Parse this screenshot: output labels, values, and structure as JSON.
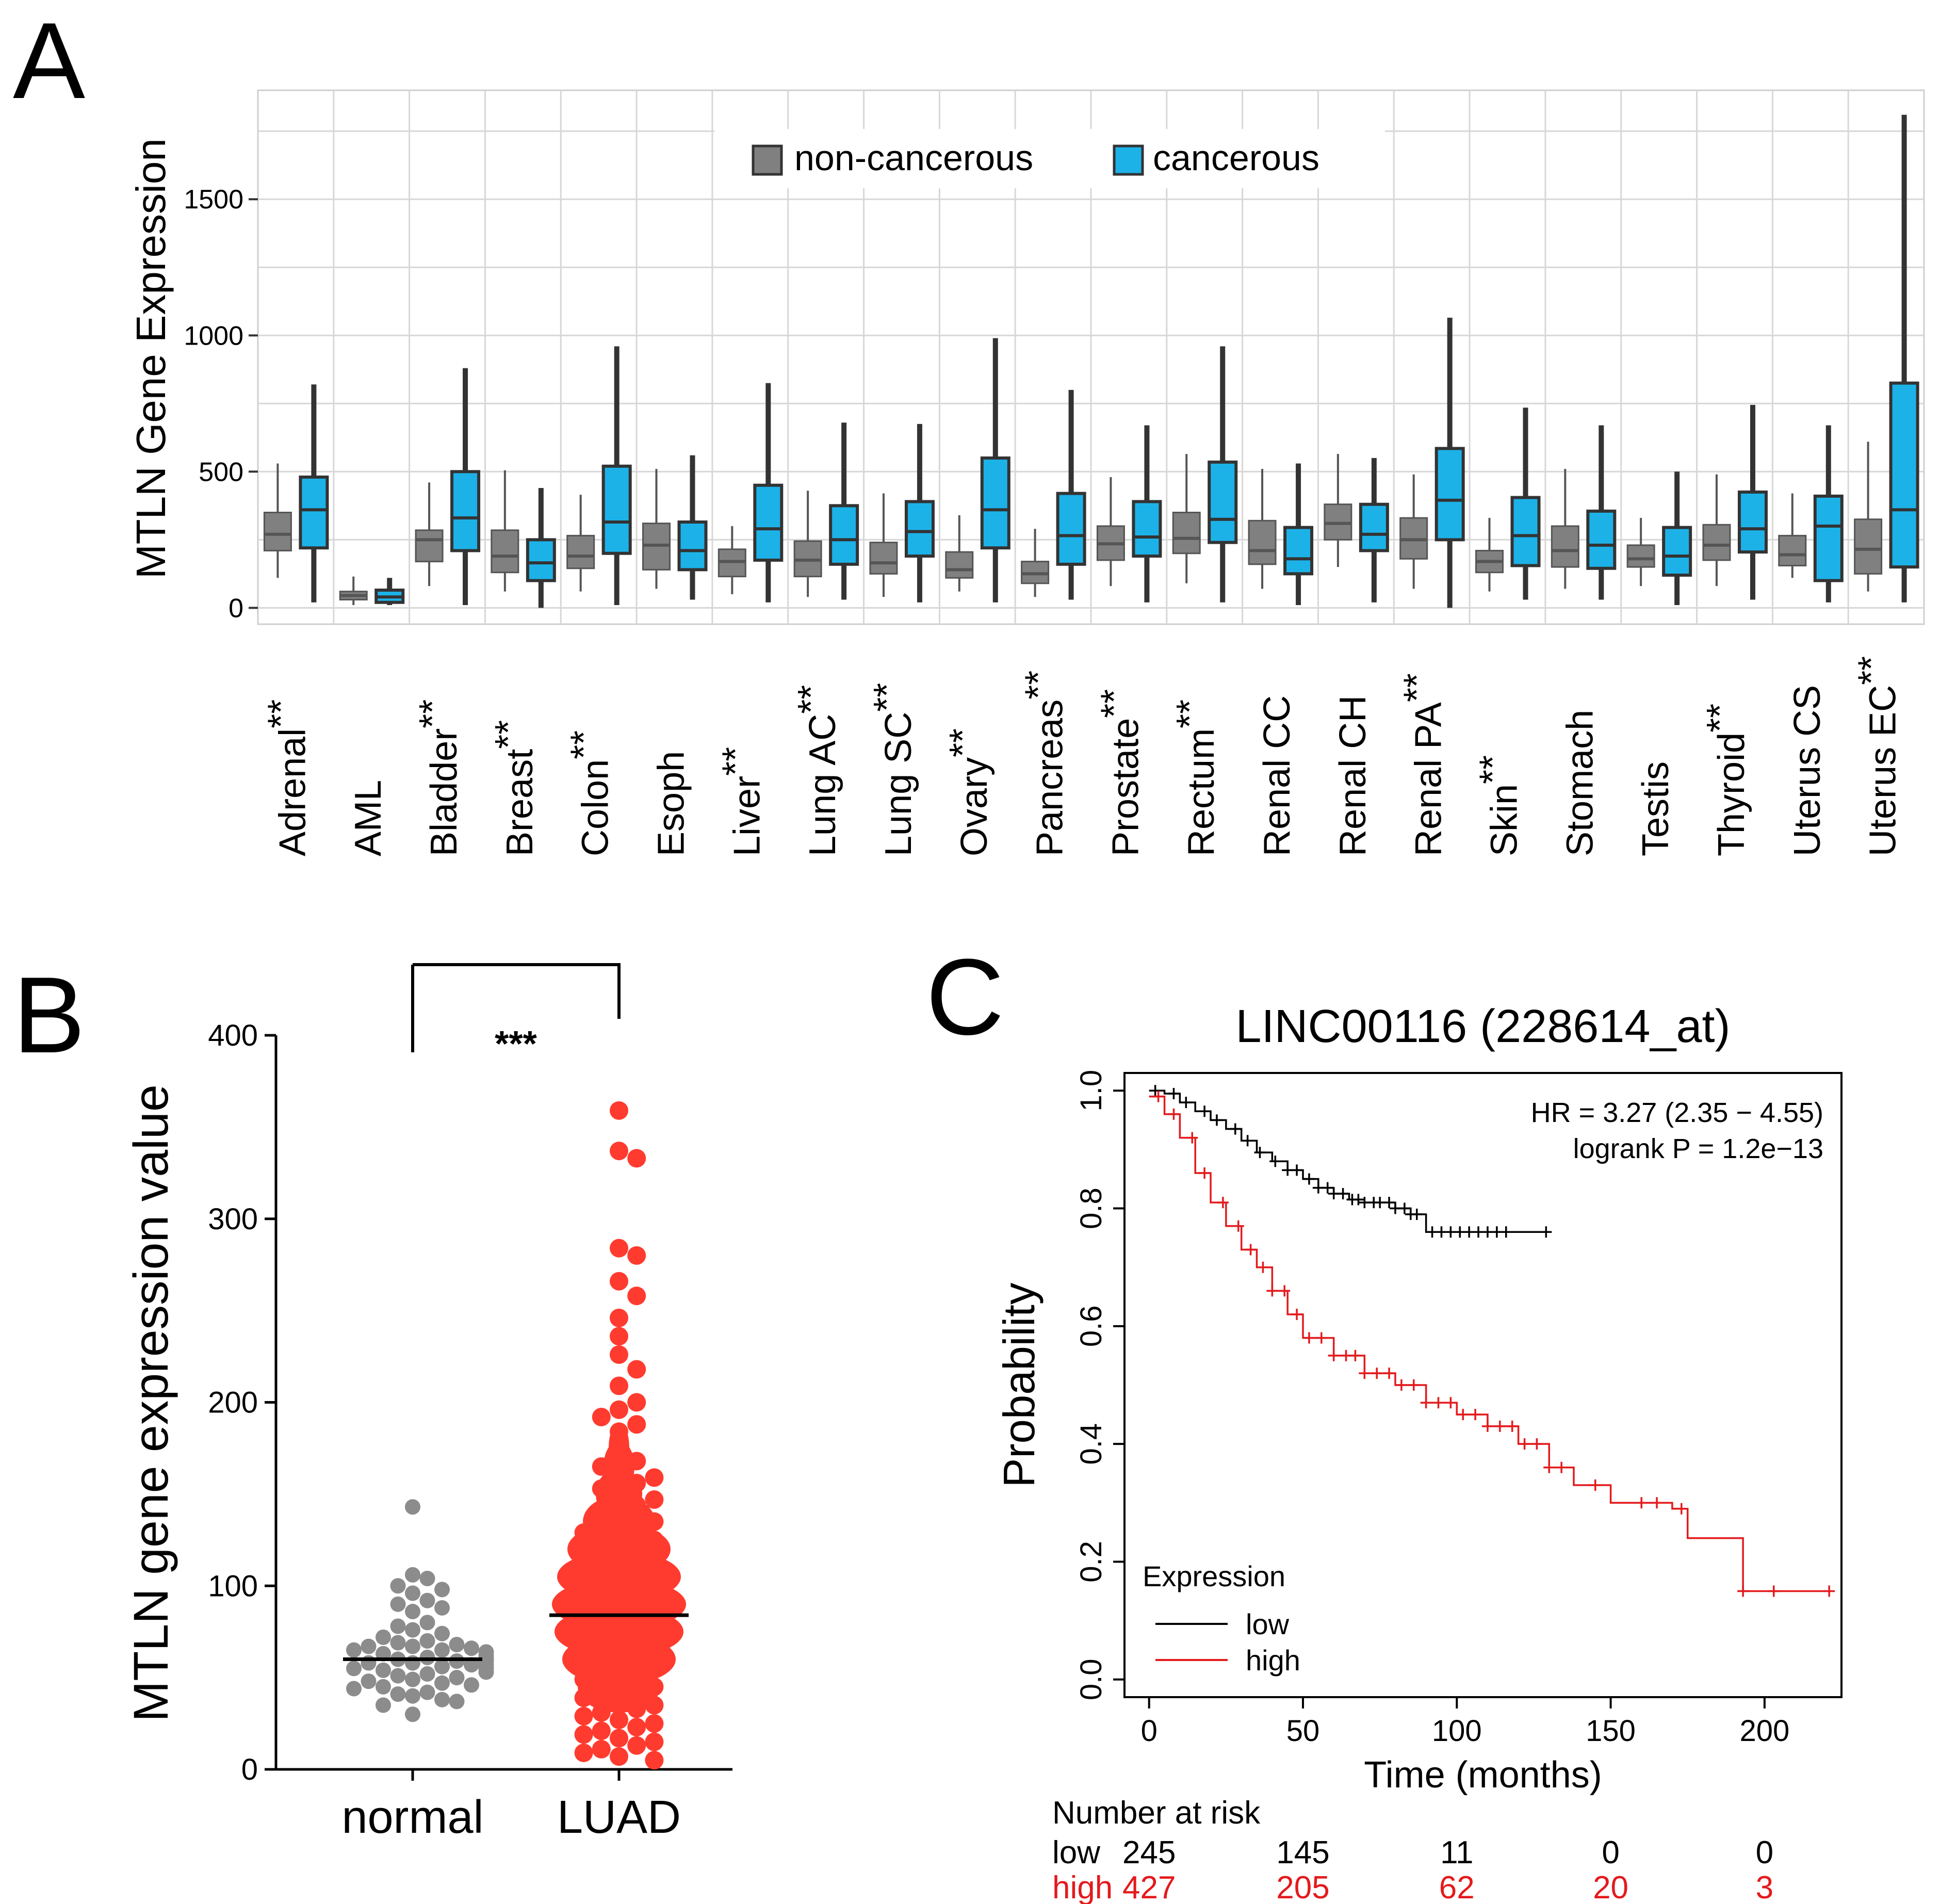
{
  "panel_labels": [
    "A",
    "B",
    "C"
  ],
  "chart_data": [
    {
      "id": "A",
      "type": "boxplot",
      "title": "",
      "xlabel": "",
      "ylabel": "MTLN Gene Expression",
      "ylim": [
        -60,
        1900
      ],
      "yticks": [
        0,
        500,
        1000,
        1500
      ],
      "ytick_labels": [
        "0",
        "500",
        "1000",
        "1500"
      ],
      "grid": true,
      "legend": [
        "non-cancerous",
        "cancerous"
      ],
      "legend_position": "top-center",
      "colors": {
        "non-cancerous": "#808080",
        "cancerous": "#1cb2e8"
      },
      "categories": [
        {
          "base": "Adrenal",
          "sig": "**"
        },
        {
          "base": "AML",
          "sig": ""
        },
        {
          "base": "Bladder",
          "sig": "**"
        },
        {
          "base": "Breast",
          "sig": "**"
        },
        {
          "base": "Colon",
          "sig": "**"
        },
        {
          "base": "Esoph",
          "sig": ""
        },
        {
          "base": "Liver",
          "sig": "**"
        },
        {
          "base": "Lung AC",
          "sig": "**"
        },
        {
          "base": "Lung SC",
          "sig": "**"
        },
        {
          "base": "Ovary",
          "sig": "**"
        },
        {
          "base": "Pancreas",
          "sig": "**"
        },
        {
          "base": "Prostate",
          "sig": "**"
        },
        {
          "base": "Rectum",
          "sig": "**"
        },
        {
          "base": "Renal CC",
          "sig": ""
        },
        {
          "base": "Renal CH",
          "sig": ""
        },
        {
          "base": "Renal PA",
          "sig": "**"
        },
        {
          "base": "Skin",
          "sig": "**"
        },
        {
          "base": "Stomach",
          "sig": ""
        },
        {
          "base": "Testis",
          "sig": ""
        },
        {
          "base": "Thyroid",
          "sig": "**"
        },
        {
          "base": "Uterus CS",
          "sig": ""
        },
        {
          "base": "Uterus EC",
          "sig": "**"
        }
      ],
      "series": [
        {
          "name": "non-cancerous",
          "boxes": [
            [
              110,
              210,
              270,
              350,
              530
            ],
            [
              10,
              30,
              45,
              60,
              115
            ],
            [
              80,
              170,
              250,
              285,
              460
            ],
            [
              60,
              130,
              190,
              285,
              505
            ],
            [
              60,
              145,
              190,
              265,
              415
            ],
            [
              70,
              140,
              230,
              310,
              510
            ],
            [
              50,
              115,
              170,
              215,
              300
            ],
            [
              40,
              115,
              175,
              245,
              430
            ],
            [
              40,
              125,
              165,
              240,
              420
            ],
            [
              60,
              110,
              140,
              205,
              340
            ],
            [
              40,
              90,
              125,
              170,
              290
            ],
            [
              80,
              175,
              235,
              300,
              480
            ],
            [
              90,
              200,
              255,
              350,
              565
            ],
            [
              70,
              160,
              210,
              320,
              510
            ],
            [
              150,
              250,
              310,
              380,
              565
            ],
            [
              70,
              180,
              250,
              330,
              490
            ],
            [
              60,
              130,
              170,
              210,
              330
            ],
            [
              70,
              150,
              210,
              300,
              510
            ],
            [
              80,
              150,
              180,
              230,
              330
            ],
            [
              80,
              175,
              230,
              305,
              490
            ],
            [
              110,
              155,
              195,
              265,
              420
            ],
            [
              60,
              125,
              215,
              325,
              610
            ]
          ]
        },
        {
          "name": "cancerous",
          "boxes": [
            [
              20,
              220,
              360,
              480,
              820
            ],
            [
              10,
              20,
              40,
              65,
              110
            ],
            [
              10,
              210,
              330,
              500,
              880
            ],
            [
              0,
              100,
              165,
              250,
              440
            ],
            [
              10,
              200,
              315,
              520,
              960
            ],
            [
              30,
              140,
              210,
              315,
              560
            ],
            [
              20,
              175,
              290,
              450,
              825
            ],
            [
              30,
              160,
              250,
              375,
              680
            ],
            [
              20,
              190,
              280,
              390,
              675
            ],
            [
              20,
              220,
              360,
              550,
              990
            ],
            [
              30,
              160,
              265,
              420,
              800
            ],
            [
              20,
              190,
              260,
              390,
              670
            ],
            [
              20,
              240,
              325,
              535,
              960
            ],
            [
              10,
              125,
              180,
              295,
              530
            ],
            [
              20,
              210,
              270,
              380,
              550
            ],
            [
              0,
              250,
              395,
              585,
              1065
            ],
            [
              30,
              155,
              265,
              405,
              735
            ],
            [
              30,
              145,
              230,
              355,
              670
            ],
            [
              10,
              120,
              190,
              295,
              500
            ],
            [
              30,
              205,
              290,
              425,
              745
            ],
            [
              20,
              100,
              300,
              410,
              670
            ],
            [
              20,
              150,
              360,
              825,
              1810
            ]
          ]
        }
      ]
    },
    {
      "id": "B",
      "type": "scatter",
      "title": "",
      "xlabel": "",
      "ylabel": "MTLN gene expression value",
      "ylim": [
        0,
        400
      ],
      "yticks": [
        0,
        100,
        200,
        300,
        400
      ],
      "ytick_labels": [
        "0",
        "100",
        "200",
        "300",
        "400"
      ],
      "categories": [
        "normal",
        "LUAD"
      ],
      "means": [
        60,
        84
      ],
      "significance": "***",
      "colors": {
        "normal": "#8c8c8c",
        "LUAD": "#ff3b2f"
      },
      "normal_points": [
        143,
        106,
        104,
        100,
        98,
        96,
        92,
        90,
        88,
        86,
        80,
        78,
        76,
        74,
        72,
        70,
        69,
        68,
        67,
        67,
        66,
        65,
        65,
        64,
        63,
        62,
        62,
        61,
        60,
        60,
        60,
        59,
        59,
        58,
        58,
        57,
        57,
        56,
        55,
        55,
        54,
        53,
        52,
        51,
        50,
        49,
        48,
        47,
        46,
        45,
        44,
        42,
        41,
        40,
        38,
        37,
        35,
        30
      ],
      "luad_points": [
        359,
        337,
        333,
        284,
        280,
        266,
        258,
        246,
        236,
        226,
        218,
        209,
        200,
        196,
        192,
        188,
        184,
        172,
        168,
        165,
        162,
        159,
        156,
        153,
        150,
        147,
        144,
        141,
        138,
        135,
        133,
        131,
        129,
        127,
        125,
        123,
        121,
        119,
        117,
        115,
        113,
        111,
        109,
        107,
        105,
        103,
        101,
        99,
        97,
        95,
        93,
        91,
        89,
        87,
        85,
        83,
        81,
        79,
        77,
        75,
        73,
        71,
        69,
        67,
        65,
        63,
        61,
        59,
        57,
        55,
        53,
        51,
        49,
        47,
        45,
        43,
        41,
        39,
        37,
        35,
        33,
        31,
        29,
        27,
        25,
        23,
        21,
        19,
        17,
        15,
        13,
        11,
        9,
        7,
        5
      ]
    },
    {
      "id": "C",
      "type": "line",
      "title": "LINC00116 (228614_at)",
      "xlabel": "Time (months)",
      "ylabel": "Probability",
      "xlim": [
        -8,
        225
      ],
      "ylim": [
        -0.03,
        1.03
      ],
      "xticks": [
        0,
        50,
        100,
        150,
        200
      ],
      "xtick_labels": [
        "0",
        "50",
        "100",
        "150",
        "200"
      ],
      "yticks": [
        0.0,
        0.2,
        0.4,
        0.6,
        0.8,
        1.0
      ],
      "ytick_labels": [
        "0.0",
        "0.2",
        "0.4",
        "0.6",
        "0.8",
        "1.0"
      ],
      "annotations": [
        "HR = 3.27 (2.35 − 4.55)",
        "logrank P = 1.2e−13"
      ],
      "legend_title": "Expression",
      "legend_position": "bottom-left",
      "series": [
        {
          "name": "low",
          "color": "#000000",
          "x": [
            0,
            5,
            10,
            15,
            20,
            25,
            30,
            35,
            40,
            45,
            50,
            55,
            60,
            65,
            70,
            75,
            80,
            85,
            88,
            90,
            100,
            110,
            120,
            129
          ],
          "y": [
            1.0,
            0.995,
            0.98,
            0.965,
            0.95,
            0.935,
            0.915,
            0.895,
            0.88,
            0.865,
            0.85,
            0.835,
            0.825,
            0.815,
            0.81,
            0.81,
            0.8,
            0.79,
            0.79,
            0.76,
            0.76,
            0.76,
            0.76,
            0.76
          ],
          "censor_x": [
            2,
            8,
            12,
            18,
            22,
            28,
            32,
            36,
            41,
            45,
            48,
            52,
            55,
            58,
            60,
            63,
            66,
            68,
            70,
            73,
            75,
            78,
            80,
            83,
            85,
            87,
            92,
            95,
            98,
            101,
            104,
            107,
            110,
            113,
            116,
            129
          ]
        },
        {
          "name": "high",
          "color": "#e41a1c",
          "x": [
            0,
            5,
            10,
            15,
            20,
            25,
            30,
            35,
            40,
            45,
            50,
            60,
            70,
            80,
            90,
            100,
            110,
            120,
            130,
            138,
            150,
            170,
            175,
            193,
            200,
            220
          ],
          "y": [
            0.99,
            0.96,
            0.92,
            0.86,
            0.81,
            0.77,
            0.73,
            0.7,
            0.66,
            0.62,
            0.58,
            0.55,
            0.52,
            0.5,
            0.47,
            0.45,
            0.43,
            0.4,
            0.36,
            0.33,
            0.3,
            0.29,
            0.24,
            0.15,
            0.15,
            0.15
          ],
          "censor_x": [
            3,
            8,
            14,
            18,
            24,
            29,
            33,
            37,
            40,
            44,
            48,
            52,
            56,
            60,
            64,
            67,
            70,
            74,
            78,
            82,
            86,
            90,
            94,
            98,
            102,
            106,
            110,
            114,
            118,
            122,
            126,
            130,
            134,
            145,
            160,
            165,
            173,
            193,
            203,
            221
          ]
        }
      ],
      "risk_table": {
        "title": "Number at risk",
        "rows": [
          {
            "label": "low",
            "color": "#000000",
            "values": [
              "245",
              "145",
              "11",
              "0",
              "0"
            ]
          },
          {
            "label": "high",
            "color": "#e41a1c",
            "values": [
              "427",
              "205",
              "62",
              "20",
              "3"
            ]
          }
        ]
      }
    }
  ]
}
